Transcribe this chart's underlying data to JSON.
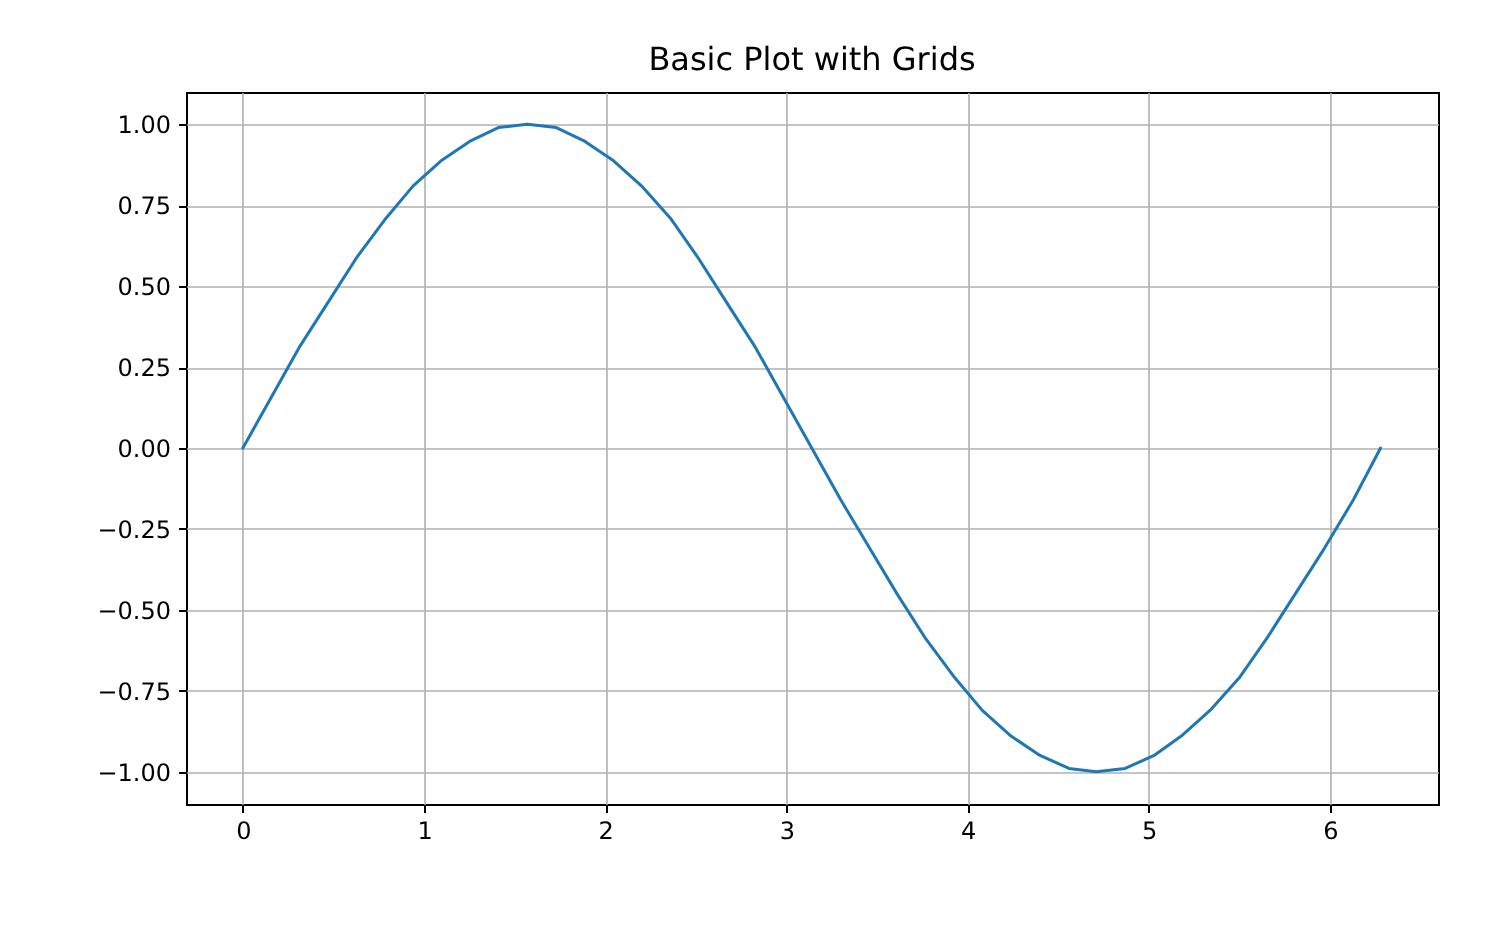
{
  "chart_data": {
    "type": "line",
    "title": "Basic Plot with Grids",
    "x": [
      0,
      0.16,
      0.31,
      0.47,
      0.63,
      0.79,
      0.94,
      1.1,
      1.26,
      1.41,
      1.57,
      1.73,
      1.88,
      2.04,
      2.2,
      2.36,
      2.51,
      2.67,
      2.83,
      2.98,
      3.14,
      3.3,
      3.46,
      3.61,
      3.77,
      3.93,
      4.08,
      4.24,
      4.4,
      4.56,
      4.71,
      4.87,
      5.03,
      5.18,
      5.34,
      5.5,
      5.65,
      5.81,
      5.97,
      6.13,
      6.28
    ],
    "series": [
      {
        "color": "#1f77b4",
        "values": [
          0,
          0.16,
          0.31,
          0.45,
          0.59,
          0.71,
          0.81,
          0.89,
          0.95,
          0.99,
          1.0,
          0.99,
          0.95,
          0.89,
          0.81,
          0.71,
          0.59,
          0.45,
          0.31,
          0.16,
          0,
          -0.16,
          -0.31,
          -0.45,
          -0.59,
          -0.71,
          -0.81,
          -0.89,
          -0.95,
          -0.99,
          -1.0,
          -0.99,
          -0.95,
          -0.89,
          -0.81,
          -0.71,
          -0.59,
          -0.45,
          -0.31,
          -0.16,
          0
        ]
      }
    ],
    "xlim": [
      -0.314,
      6.597
    ],
    "ylim": [
      -1.1,
      1.1
    ],
    "xticks": [
      0,
      1,
      2,
      3,
      4,
      5,
      6
    ],
    "yticks": [
      {
        "value": -1,
        "label": "−1.00"
      },
      {
        "value": -0.75,
        "label": "−0.75"
      },
      {
        "value": -0.5,
        "label": "−0.50"
      },
      {
        "value": -0.25,
        "label": "−0.25"
      },
      {
        "value": 0,
        "label": "0.00"
      },
      {
        "value": 0.25,
        "label": "0.25"
      },
      {
        "value": 0.5,
        "label": "0.50"
      },
      {
        "value": 0.75,
        "label": "0.75"
      },
      {
        "value": 1,
        "label": "1.00"
      }
    ],
    "grid": true,
    "line_style": "solid"
  }
}
